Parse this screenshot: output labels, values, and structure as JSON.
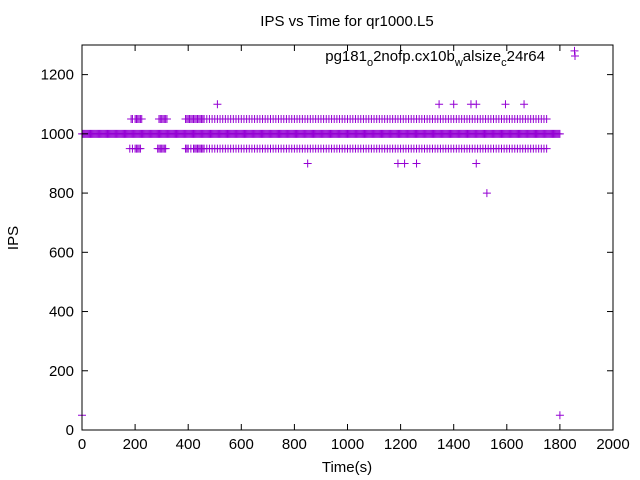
{
  "chart_data": {
    "type": "scatter",
    "title": "IPS vs Time for qr1000.L5",
    "xlabel": "Time(s)",
    "ylabel": "IPS",
    "xlim": [
      0,
      2000
    ],
    "ylim": [
      0,
      1300
    ],
    "xticks": [
      0,
      200,
      400,
      600,
      800,
      1000,
      1200,
      1400,
      1600,
      1800,
      2000
    ],
    "yticks": [
      0,
      200,
      400,
      600,
      800,
      1000,
      1200
    ],
    "grid": false,
    "legend_position": "top-right",
    "marker": "plus",
    "series": [
      {
        "name": "pg181_o2nofp.cx10b_walsize_c24r64",
        "color": "#9400d3",
        "dense_baseline": {
          "y": 1000,
          "x_from": 0,
          "x_to": 1800,
          "step": 4
        },
        "band_high": {
          "y": 1050,
          "x": [
            185,
            190,
            200,
            205,
            210,
            215,
            220,
            225,
            290,
            295,
            300,
            305,
            310,
            315,
            320,
            390,
            395,
            400,
            405,
            410,
            415,
            420,
            425,
            430,
            435,
            440,
            445,
            450,
            455,
            460,
            470,
            480,
            490,
            500,
            510,
            520,
            530,
            540,
            550,
            560,
            570,
            580,
            590,
            600,
            610,
            620,
            630,
            640,
            650,
            660,
            670,
            680,
            690,
            700,
            710,
            720,
            730,
            740,
            750,
            760,
            770,
            780,
            790,
            800,
            810,
            820,
            830,
            840,
            850,
            860,
            870,
            880,
            890,
            900,
            910,
            920,
            930,
            940,
            950,
            960,
            970,
            980,
            990,
            1000,
            1010,
            1020,
            1030,
            1040,
            1050,
            1060,
            1070,
            1080,
            1090,
            1100,
            1110,
            1120,
            1130,
            1140,
            1150,
            1160,
            1170,
            1180,
            1190,
            1200,
            1210,
            1220,
            1230,
            1240,
            1250,
            1260,
            1270,
            1280,
            1290,
            1300,
            1310,
            1320,
            1330,
            1340,
            1350,
            1360,
            1370,
            1380,
            1390,
            1400,
            1410,
            1420,
            1430,
            1440,
            1450,
            1460,
            1470,
            1480,
            1490,
            1500,
            1510,
            1520,
            1530,
            1540,
            1550,
            1560,
            1570,
            1580,
            1590,
            1600,
            1610,
            1620,
            1630,
            1640,
            1650,
            1660,
            1670,
            1680,
            1690,
            1700,
            1710,
            1720,
            1730,
            1740,
            1750
          ]
        },
        "band_low": {
          "y": 950,
          "x": [
            180,
            190,
            200,
            205,
            210,
            215,
            220,
            285,
            290,
            295,
            300,
            305,
            310,
            315,
            390,
            395,
            400,
            410,
            420,
            425,
            430,
            435,
            440,
            445,
            450,
            455,
            460,
            470,
            480,
            490,
            500,
            510,
            520,
            530,
            540,
            550,
            560,
            570,
            580,
            590,
            600,
            610,
            620,
            630,
            640,
            650,
            660,
            670,
            680,
            690,
            700,
            710,
            720,
            730,
            740,
            750,
            760,
            770,
            780,
            790,
            800,
            810,
            820,
            830,
            840,
            850,
            860,
            870,
            880,
            890,
            900,
            910,
            920,
            930,
            940,
            950,
            960,
            970,
            980,
            990,
            1000,
            1010,
            1020,
            1030,
            1040,
            1050,
            1060,
            1070,
            1080,
            1090,
            1100,
            1110,
            1120,
            1130,
            1140,
            1150,
            1160,
            1170,
            1180,
            1190,
            1200,
            1210,
            1220,
            1230,
            1240,
            1250,
            1260,
            1270,
            1280,
            1290,
            1300,
            1310,
            1320,
            1330,
            1340,
            1350,
            1360,
            1370,
            1380,
            1390,
            1400,
            1410,
            1420,
            1430,
            1440,
            1450,
            1460,
            1470,
            1480,
            1490,
            1500,
            1510,
            1520,
            1530,
            1540,
            1550,
            1560,
            1570,
            1580,
            1590,
            1600,
            1610,
            1620,
            1630,
            1640,
            1650,
            1660,
            1670,
            1680,
            1690,
            1700,
            1710,
            1720,
            1730,
            1740,
            1750
          ]
        },
        "points": [
          {
            "x": 0,
            "y": 50
          },
          {
            "x": 205,
            "y": 1050
          },
          {
            "x": 510,
            "y": 1100
          },
          {
            "x": 850,
            "y": 900
          },
          {
            "x": 1190,
            "y": 900
          },
          {
            "x": 1215,
            "y": 900
          },
          {
            "x": 1260,
            "y": 900
          },
          {
            "x": 1345,
            "y": 1100
          },
          {
            "x": 1400,
            "y": 1100
          },
          {
            "x": 1465,
            "y": 1100
          },
          {
            "x": 1485,
            "y": 1100
          },
          {
            "x": 1485,
            "y": 900
          },
          {
            "x": 1525,
            "y": 800
          },
          {
            "x": 1595,
            "y": 1100
          },
          {
            "x": 1665,
            "y": 1100
          },
          {
            "x": 1800,
            "y": 50
          },
          {
            "x": 1855,
            "y": 1280
          }
        ]
      }
    ]
  }
}
